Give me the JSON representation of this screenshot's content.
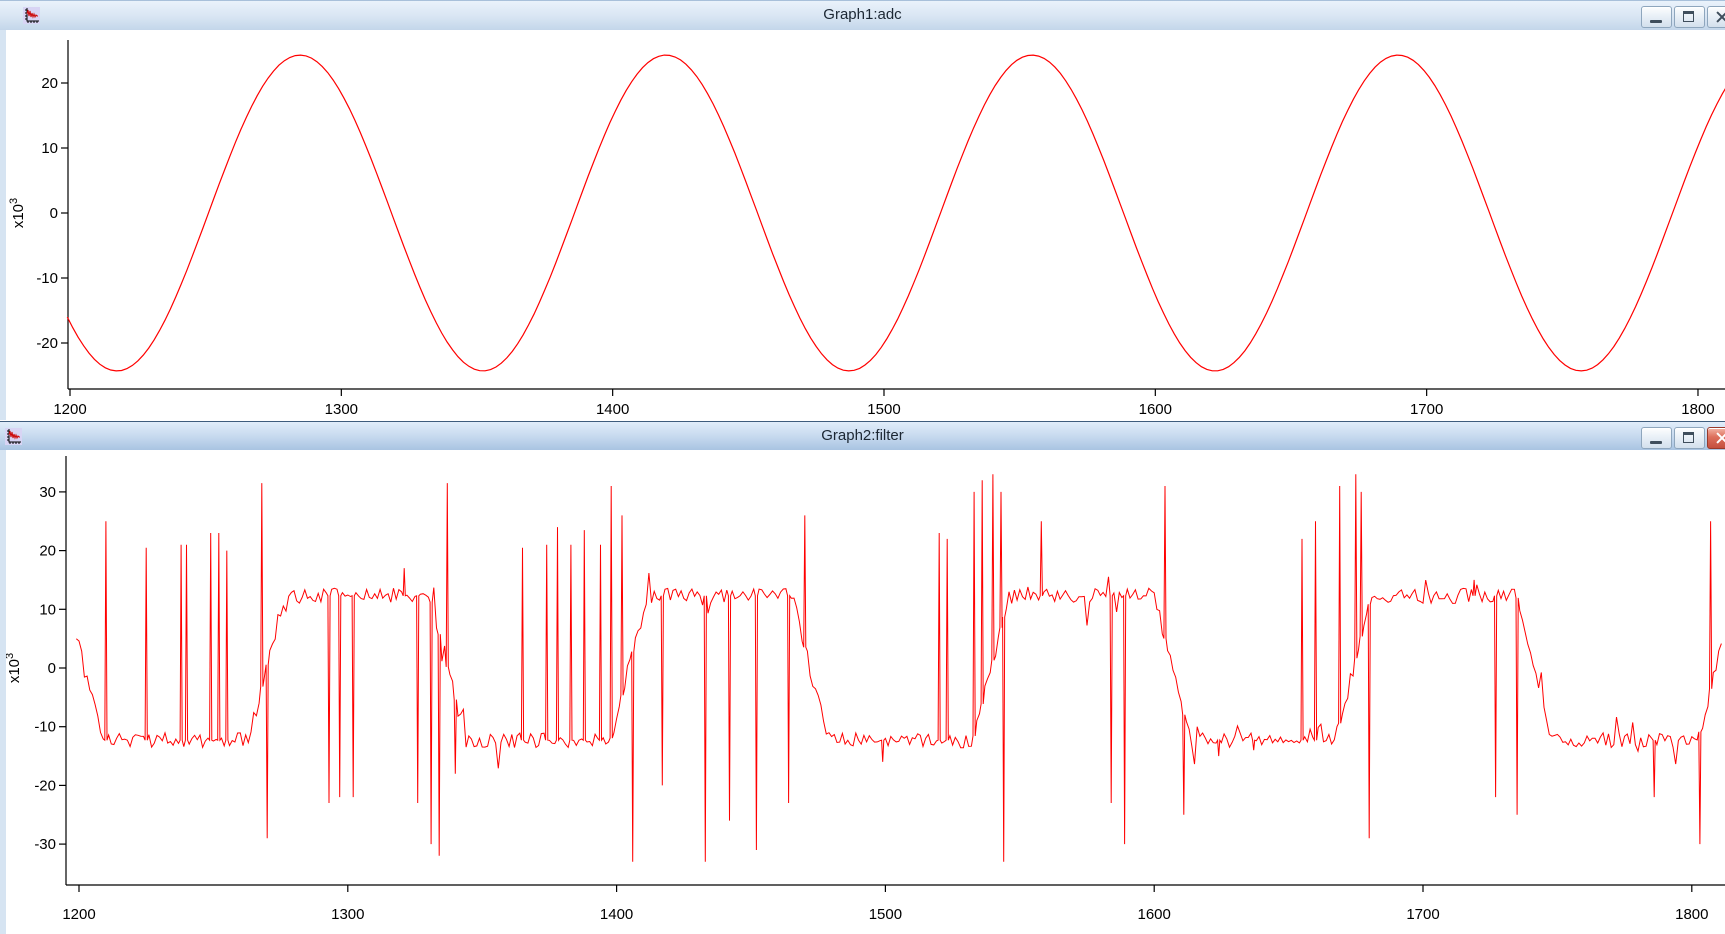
{
  "windows": [
    {
      "title": "Graph1:adc",
      "active": false,
      "icon": "graph-app-icon",
      "controls": [
        "minimize",
        "restore",
        "close"
      ]
    },
    {
      "title": "Graph2:filter",
      "active": true,
      "icon": "graph-app-icon",
      "controls": [
        "minimize",
        "restore",
        "close"
      ]
    }
  ],
  "colors": {
    "trace": "#ff0000",
    "axis": "#000000",
    "plot_bg": "#ffffff",
    "titlebar_inactive_top": "#eaf2fb",
    "titlebar_inactive_bottom": "#c3d6ea",
    "titlebar_active_top": "#e1edfa",
    "titlebar_active_bottom": "#a9c4e2",
    "close_button_active": "#c44f3e",
    "window_frame": "#d6e4f2"
  },
  "chart_data": [
    {
      "type": "line",
      "title": "Graph1:adc",
      "xlabel": "",
      "ylabel_base": "x10",
      "ylabel_exp": "3",
      "x_ticks": [
        1200,
        1300,
        1400,
        1500,
        1600,
        1700,
        1800
      ],
      "y_ticks": [
        20,
        10,
        0,
        -10,
        -20
      ],
      "xlim": [
        1199,
        1811
      ],
      "ylim": [
        -27,
        27
      ],
      "grid": false,
      "legend": false,
      "series": [
        {
          "name": "adc",
          "color": "#ff0000",
          "model": "sine",
          "amplitude": 24.3,
          "period": 134.9,
          "trough_x": 1217.3,
          "sample_step": 2
        }
      ]
    },
    {
      "type": "line",
      "title": "Graph2:filter",
      "xlabel": "",
      "ylabel_base": "x10",
      "ylabel_exp": "3",
      "x_ticks": [
        1200,
        1300,
        1400,
        1500,
        1600,
        1700,
        1800
      ],
      "y_ticks": [
        30,
        20,
        10,
        0,
        -10,
        -20,
        -30
      ],
      "xlim": [
        1199,
        1811
      ],
      "ylim": [
        -37,
        40
      ],
      "grid": false,
      "legend": false,
      "series": [
        {
          "name": "filter",
          "color": "#ff0000",
          "model": "clipped_sine_with_noise_and_spikes",
          "base_amplitude": 40,
          "clip_level": 12.3,
          "period": 134.8,
          "trough_x": 1236,
          "noise_amplitude": 1.3,
          "burst_probability": 0.055,
          "burst_amplitude": 4.5,
          "noise_seed": 987654321,
          "sample_step": 1,
          "spikes": [
            [
              1210,
              25
            ],
            [
              1225,
              20.5
            ],
            [
              1238,
              21
            ],
            [
              1240,
              21
            ],
            [
              1249,
              23
            ],
            [
              1252,
              23
            ],
            [
              1255,
              20
            ],
            [
              1268,
              31.5
            ],
            [
              1270,
              -29
            ],
            [
              1293,
              -23
            ],
            [
              1297,
              -22
            ],
            [
              1302,
              -22
            ],
            [
              1321,
              17
            ],
            [
              1326,
              -23
            ],
            [
              1331,
              -30
            ],
            [
              1334,
              -32
            ],
            [
              1337,
              31.5
            ],
            [
              1340,
              -18
            ],
            [
              1365,
              20.5
            ],
            [
              1374,
              21
            ],
            [
              1378,
              24
            ],
            [
              1383,
              21
            ],
            [
              1388,
              23.5
            ],
            [
              1394,
              21
            ],
            [
              1398,
              31
            ],
            [
              1402,
              26
            ],
            [
              1406,
              -33
            ],
            [
              1417,
              -20
            ],
            [
              1433,
              -33
            ],
            [
              1442,
              -26
            ],
            [
              1452,
              -31
            ],
            [
              1464,
              -23
            ],
            [
              1470,
              26
            ],
            [
              1499,
              -16
            ],
            [
              1520,
              23
            ],
            [
              1523,
              22
            ],
            [
              1533,
              30
            ],
            [
              1536,
              32
            ],
            [
              1540,
              33
            ],
            [
              1543,
              30
            ],
            [
              1544,
              -33
            ],
            [
              1558,
              25
            ],
            [
              1584,
              -23
            ],
            [
              1589,
              -30
            ],
            [
              1604,
              31
            ],
            [
              1611,
              -25
            ],
            [
              1624,
              -15
            ],
            [
              1637,
              -14
            ],
            [
              1655,
              22
            ],
            [
              1660,
              25
            ],
            [
              1669,
              31
            ],
            [
              1675,
              33
            ],
            [
              1677,
              30
            ],
            [
              1680,
              -29
            ],
            [
              1719,
              15
            ],
            [
              1727,
              -22
            ],
            [
              1735,
              -25
            ],
            [
              1786,
              -22
            ],
            [
              1803,
              -30
            ],
            [
              1807,
              25
            ]
          ]
        }
      ]
    }
  ]
}
